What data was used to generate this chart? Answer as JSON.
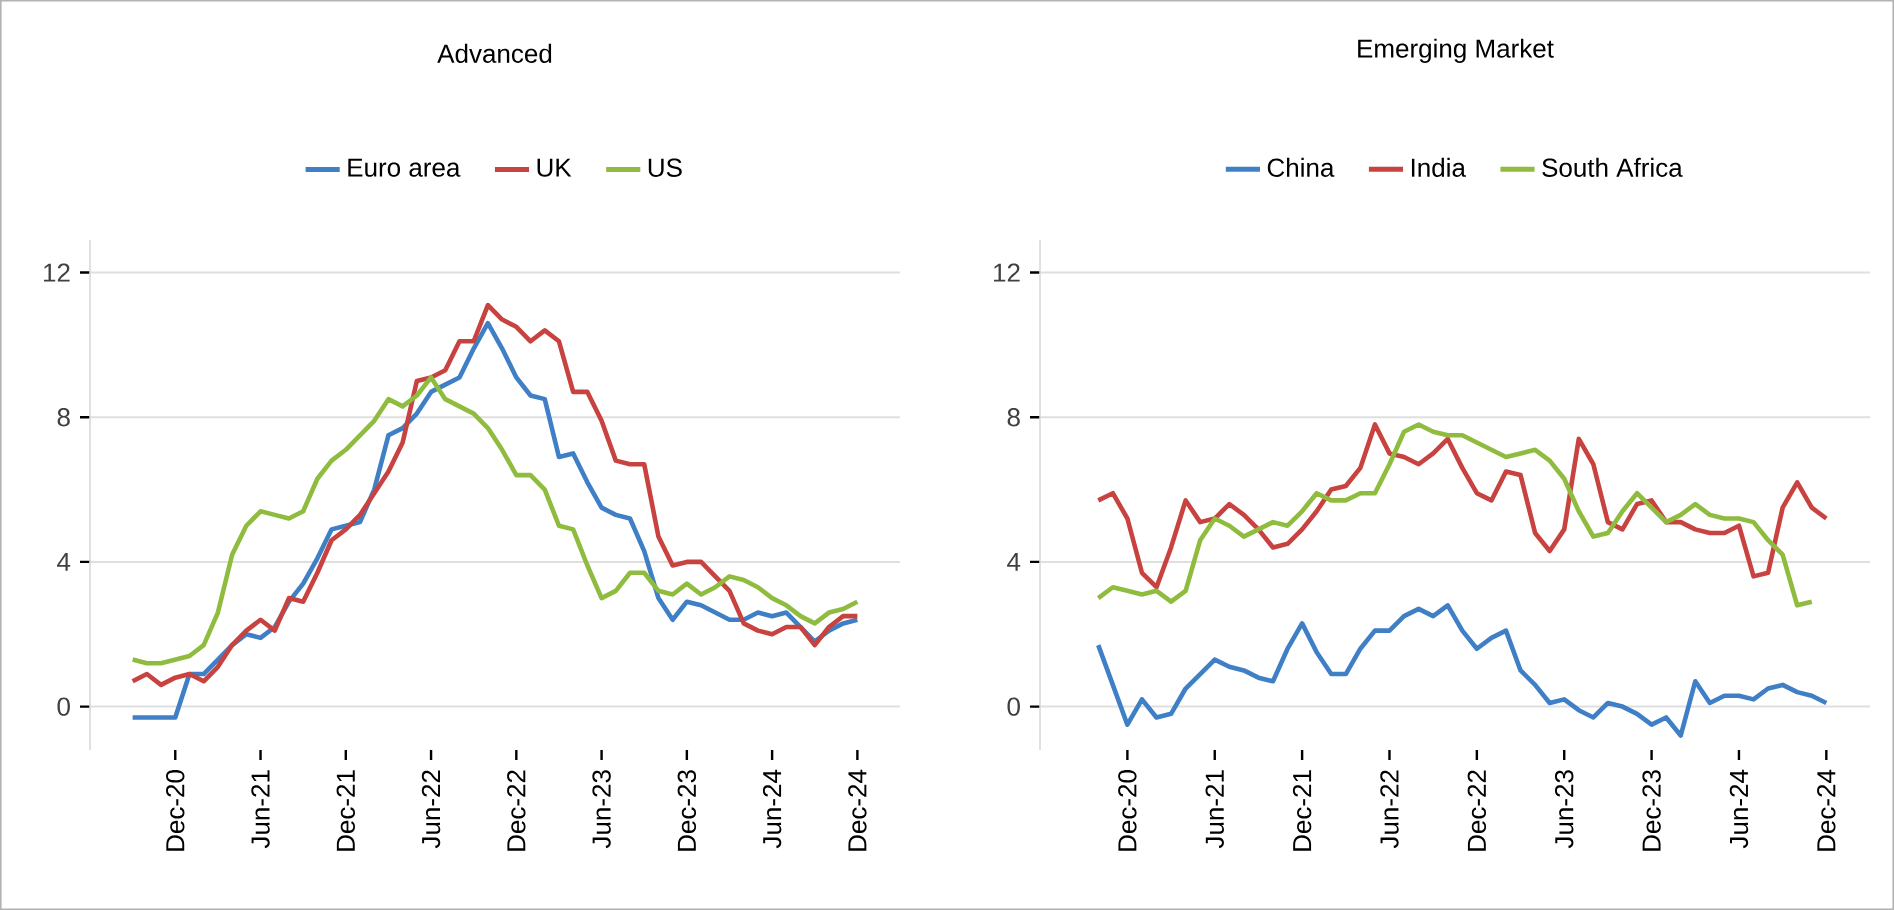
{
  "chart_data": [
    {
      "type": "line",
      "title": "Advanced",
      "grid": "y",
      "legend": "top",
      "x": [
        "2020-09",
        "2020-10",
        "2020-11",
        "2020-12",
        "2021-01",
        "2021-02",
        "2021-03",
        "2021-04",
        "2021-05",
        "2021-06",
        "2021-07",
        "2021-08",
        "2021-09",
        "2021-10",
        "2021-11",
        "2021-12",
        "2022-01",
        "2022-02",
        "2022-03",
        "2022-04",
        "2022-05",
        "2022-06",
        "2022-07",
        "2022-08",
        "2022-09",
        "2022-10",
        "2022-11",
        "2022-12",
        "2023-01",
        "2023-02",
        "2023-03",
        "2023-04",
        "2023-05",
        "2023-06",
        "2023-07",
        "2023-08",
        "2023-09",
        "2023-10",
        "2023-11",
        "2023-12",
        "2024-01",
        "2024-02",
        "2024-03",
        "2024-04",
        "2024-05",
        "2024-06",
        "2024-07",
        "2024-08",
        "2024-09",
        "2024-10",
        "2024-11",
        "2024-12"
      ],
      "series": [
        {
          "name": "Euro area",
          "color": "#3f7fc6",
          "values": [
            -0.3,
            -0.3,
            -0.3,
            -0.3,
            0.9,
            0.9,
            1.3,
            1.7,
            2.0,
            1.9,
            2.2,
            2.9,
            3.4,
            4.1,
            4.9,
            5.0,
            5.1,
            6.0,
            7.5,
            7.7,
            8.1,
            8.7,
            8.9,
            9.1,
            9.9,
            10.6,
            9.9,
            9.1,
            8.6,
            8.5,
            6.9,
            7.0,
            6.2,
            5.5,
            5.3,
            5.2,
            4.3,
            3.0,
            2.4,
            2.9,
            2.8,
            2.6,
            2.4,
            2.4,
            2.6,
            2.5,
            2.6,
            2.2,
            1.8,
            2.1,
            2.3,
            2.4
          ]
        },
        {
          "name": "UK",
          "color": "#c8423f",
          "values": [
            0.7,
            0.9,
            0.6,
            0.8,
            0.9,
            0.7,
            1.1,
            1.7,
            2.1,
            2.4,
            2.1,
            3.0,
            2.9,
            3.7,
            4.6,
            4.9,
            5.3,
            5.9,
            6.5,
            7.3,
            9.0,
            9.1,
            9.3,
            10.1,
            10.1,
            11.1,
            10.7,
            10.5,
            10.1,
            10.4,
            10.1,
            8.7,
            8.7,
            7.9,
            6.8,
            6.7,
            6.7,
            4.7,
            3.9,
            4.0,
            4.0,
            3.6,
            3.2,
            2.3,
            2.1,
            2.0,
            2.2,
            2.2,
            1.7,
            2.2,
            2.5,
            2.5
          ]
        },
        {
          "name": "US",
          "color": "#8fbc3f",
          "values": [
            1.3,
            1.2,
            1.2,
            1.3,
            1.4,
            1.7,
            2.6,
            4.2,
            5.0,
            5.4,
            5.3,
            5.2,
            5.4,
            6.3,
            6.8,
            7.1,
            7.5,
            7.9,
            8.5,
            8.3,
            8.6,
            9.1,
            8.5,
            8.3,
            8.1,
            7.7,
            7.1,
            6.4,
            6.4,
            6.0,
            5.0,
            4.9,
            3.9,
            3.0,
            3.2,
            3.7,
            3.7,
            3.2,
            3.1,
            3.4,
            3.1,
            3.3,
            3.6,
            3.5,
            3.3,
            3.0,
            2.8,
            2.5,
            2.3,
            2.6,
            2.7,
            2.9
          ]
        }
      ],
      "xlim": [
        "2020-06",
        "2025-03"
      ],
      "ylim": [
        -1.2,
        12.9
      ],
      "xticks": [
        {
          "value": "2020-12",
          "label": "Dec-20"
        },
        {
          "value": "2021-06",
          "label": "Jun-21"
        },
        {
          "value": "2021-12",
          "label": "Dec-21"
        },
        {
          "value": "2022-06",
          "label": "Jun-22"
        },
        {
          "value": "2022-12",
          "label": "Dec-22"
        },
        {
          "value": "2023-06",
          "label": "Jun-23"
        },
        {
          "value": "2023-12",
          "label": "Dec-23"
        },
        {
          "value": "2024-06",
          "label": "Jun-24"
        },
        {
          "value": "2024-12",
          "label": "Dec-24"
        }
      ],
      "yticks": [
        0,
        4,
        8,
        12
      ]
    },
    {
      "type": "line",
      "title": "Emerging Market",
      "grid": "y",
      "legend": "top",
      "x": [
        "2020-10",
        "2020-11",
        "2020-12",
        "2021-01",
        "2021-02",
        "2021-03",
        "2021-04",
        "2021-05",
        "2021-06",
        "2021-07",
        "2021-08",
        "2021-09",
        "2021-10",
        "2021-11",
        "2021-12",
        "2022-01",
        "2022-02",
        "2022-03",
        "2022-04",
        "2022-05",
        "2022-06",
        "2022-07",
        "2022-08",
        "2022-09",
        "2022-10",
        "2022-11",
        "2022-12",
        "2023-01",
        "2023-02",
        "2023-03",
        "2023-04",
        "2023-05",
        "2023-06",
        "2023-07",
        "2023-08",
        "2023-09",
        "2023-10",
        "2023-11",
        "2023-12",
        "2024-01",
        "2024-02",
        "2024-03",
        "2024-04",
        "2024-05",
        "2024-06",
        "2024-07",
        "2024-08",
        "2024-09",
        "2024-10",
        "2024-11",
        "2024-12"
      ],
      "series": [
        {
          "name": "China",
          "color": "#3f7fc6",
          "values": [
            1.7,
            0.6,
            -0.5,
            0.2,
            -0.3,
            -0.2,
            0.5,
            0.9,
            1.3,
            1.1,
            1.0,
            0.8,
            0.7,
            1.6,
            2.3,
            1.5,
            0.9,
            0.9,
            1.6,
            2.1,
            2.1,
            2.5,
            2.7,
            2.5,
            2.8,
            2.1,
            1.6,
            1.9,
            2.1,
            1.0,
            0.6,
            0.1,
            0.2,
            -0.1,
            -0.3,
            0.1,
            0.0,
            -0.2,
            -0.5,
            -0.3,
            -0.8,
            0.7,
            0.1,
            0.3,
            0.3,
            0.2,
            0.5,
            0.6,
            0.4,
            0.3,
            0.1
          ]
        },
        {
          "name": "India",
          "color": "#c8423f",
          "values": [
            5.7,
            5.9,
            5.2,
            3.7,
            3.3,
            4.4,
            5.7,
            5.1,
            5.2,
            5.6,
            5.3,
            4.9,
            4.4,
            4.5,
            4.9,
            5.4,
            6.0,
            6.1,
            6.6,
            7.8,
            7.0,
            6.9,
            6.7,
            7.0,
            7.4,
            6.6,
            5.9,
            5.7,
            6.5,
            6.4,
            4.8,
            4.3,
            4.9,
            7.4,
            6.7,
            5.1,
            4.9,
            5.6,
            5.7,
            5.1,
            5.1,
            4.9,
            4.8,
            4.8,
            5.0,
            3.6,
            3.7,
            5.5,
            6.2,
            5.5,
            5.2
          ]
        },
        {
          "name": "South Africa",
          "color": "#8fbc3f",
          "values": [
            3.0,
            3.3,
            3.2,
            3.1,
            3.2,
            2.9,
            3.2,
            4.6,
            5.2,
            5.0,
            4.7,
            4.9,
            5.1,
            5.0,
            5.4,
            5.9,
            5.7,
            5.7,
            5.9,
            5.9,
            6.7,
            7.6,
            7.8,
            7.6,
            7.5,
            7.5,
            7.3,
            7.1,
            6.9,
            7.0,
            7.1,
            6.8,
            6.3,
            5.4,
            4.7,
            4.8,
            5.4,
            5.9,
            5.5,
            5.1,
            5.3,
            5.6,
            5.3,
            5.2,
            5.2,
            5.1,
            4.6,
            4.2,
            2.8,
            2.9,
            null
          ]
        }
      ],
      "xlim": [
        "2020-06",
        "2025-03"
      ],
      "ylim": [
        -1.2,
        12.9
      ],
      "xticks": [
        {
          "value": "2020-12",
          "label": "Dec-20"
        },
        {
          "value": "2021-06",
          "label": "Jun-21"
        },
        {
          "value": "2021-12",
          "label": "Dec-21"
        },
        {
          "value": "2022-06",
          "label": "Jun-22"
        },
        {
          "value": "2022-12",
          "label": "Dec-22"
        },
        {
          "value": "2023-06",
          "label": "Jun-23"
        },
        {
          "value": "2023-12",
          "label": "Dec-23"
        },
        {
          "value": "2024-06",
          "label": "Jun-24"
        },
        {
          "value": "2024-12",
          "label": "Dec-24"
        }
      ],
      "yticks": [
        0,
        4,
        8,
        12
      ]
    }
  ]
}
